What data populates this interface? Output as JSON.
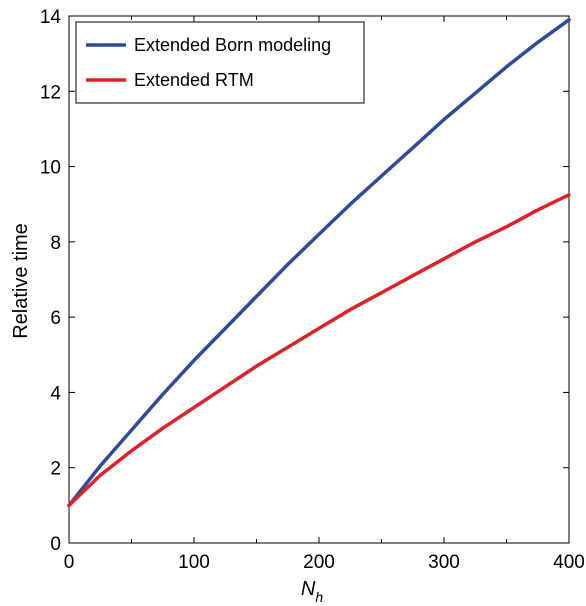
{
  "chart_data": {
    "type": "line",
    "xlabel": {
      "main": "N",
      "sub": "h"
    },
    "ylabel": "Relative time",
    "xlim": [
      0,
      400
    ],
    "ylim": [
      0,
      14
    ],
    "x_ticks": [
      0,
      100,
      200,
      300,
      400
    ],
    "y_ticks": [
      0,
      2,
      4,
      6,
      8,
      10,
      12,
      14
    ],
    "x_minor_step": 50,
    "grid": false,
    "legend_position": "top-left",
    "series": [
      {
        "name": "Extended Born modeling",
        "color": "#2e4a9e",
        "x": [
          0,
          25,
          50,
          75,
          100,
          125,
          150,
          175,
          200,
          225,
          250,
          275,
          300,
          325,
          350,
          375,
          400
        ],
        "y": [
          1.0,
          2.05,
          3.0,
          3.95,
          4.85,
          5.7,
          6.55,
          7.4,
          8.2,
          9.0,
          9.75,
          10.5,
          11.25,
          11.95,
          12.65,
          13.3,
          13.9
        ]
      },
      {
        "name": "Extended RTM",
        "color": "#e02027",
        "x": [
          0,
          25,
          50,
          75,
          100,
          125,
          150,
          175,
          200,
          225,
          250,
          275,
          300,
          325,
          350,
          375,
          400
        ],
        "y": [
          1.0,
          1.8,
          2.45,
          3.05,
          3.6,
          4.15,
          4.7,
          5.2,
          5.7,
          6.2,
          6.65,
          7.1,
          7.55,
          8.0,
          8.4,
          8.85,
          9.25
        ]
      }
    ]
  }
}
